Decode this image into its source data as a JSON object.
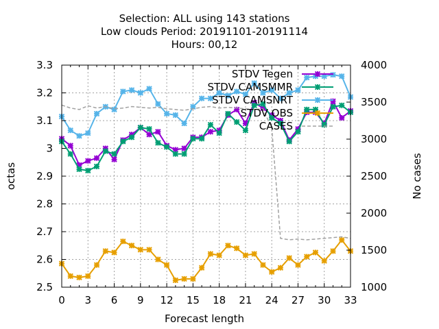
{
  "chart_data": {
    "type": "line",
    "title_lines": [
      "Selection: ALL using   143 stations",
      "Low clouds   Period: 20191101-20191114",
      "Hours:  00,12"
    ],
    "xlabel": "Forecast length",
    "ylabel": "octas",
    "y2label": "No cases",
    "xlim": [
      0,
      33
    ],
    "ylim": [
      2.5,
      3.3
    ],
    "y2lim": [
      1000,
      4000
    ],
    "xticks": [
      0,
      3,
      6,
      9,
      12,
      15,
      18,
      21,
      24,
      27,
      30,
      33
    ],
    "yticks": [
      2.5,
      2.6,
      2.7,
      2.8,
      2.9,
      3.0,
      3.1,
      3.2,
      3.3
    ],
    "ytick_labels": [
      "2.5",
      "2.6",
      "2.7",
      "2.8",
      "2.9",
      "3",
      "3.1",
      "3.2",
      "3.3"
    ],
    "y2ticks": [
      1000,
      1500,
      2000,
      2500,
      3000,
      3500,
      4000
    ],
    "grid": true,
    "legend_position": "top-right",
    "x": [
      0,
      1,
      2,
      3,
      4,
      5,
      6,
      7,
      8,
      9,
      10,
      11,
      12,
      13,
      14,
      15,
      16,
      17,
      18,
      19,
      20,
      21,
      22,
      23,
      24,
      25,
      26,
      27,
      28,
      29,
      30,
      31,
      32,
      33
    ],
    "series": [
      {
        "name": "STDV Tegen",
        "color": "#9400d3",
        "marker": "x",
        "axis": "left",
        "values": [
          3.035,
          3.01,
          2.94,
          2.955,
          2.965,
          3.0,
          2.96,
          3.03,
          3.05,
          3.075,
          3.05,
          3.06,
          3.01,
          2.995,
          3.0,
          3.04,
          3.04,
          3.06,
          3.065,
          3.12,
          3.14,
          3.09,
          3.165,
          3.145,
          3.12,
          3.1,
          3.03,
          3.07,
          3.13,
          3.13,
          3.09,
          3.17,
          3.11,
          3.135
        ]
      },
      {
        "name": "STDV CAMSMMR",
        "color": "#009e73",
        "marker": "x",
        "axis": "left",
        "values": [
          3.025,
          2.98,
          2.925,
          2.92,
          2.935,
          2.99,
          2.98,
          3.025,
          3.04,
          3.075,
          3.07,
          3.02,
          3.005,
          2.98,
          2.98,
          3.035,
          3.035,
          3.085,
          3.055,
          3.125,
          3.095,
          3.065,
          3.155,
          3.16,
          3.11,
          3.09,
          3.025,
          3.06,
          3.14,
          3.14,
          3.085,
          3.15,
          3.155,
          3.13
        ]
      },
      {
        "name": "STDV CAMSNRT",
        "color": "#56b4e9",
        "marker": "x",
        "axis": "left",
        "values": [
          3.115,
          3.065,
          3.045,
          3.055,
          3.125,
          3.15,
          3.14,
          3.205,
          3.21,
          3.2,
          3.215,
          3.16,
          3.125,
          3.12,
          3.09,
          3.15,
          3.18,
          3.18,
          3.2,
          3.19,
          3.205,
          3.195,
          3.235,
          3.2,
          3.21,
          3.18,
          3.2,
          3.21,
          3.255,
          3.26,
          3.26,
          3.265,
          3.26,
          3.185
        ]
      },
      {
        "name": "STDV OBS",
        "color": "#e69f00",
        "marker": "x",
        "axis": "left",
        "values": [
          2.585,
          2.54,
          2.535,
          2.54,
          2.58,
          2.63,
          2.625,
          2.665,
          2.65,
          2.635,
          2.635,
          2.6,
          2.58,
          2.525,
          2.53,
          2.53,
          2.57,
          2.62,
          2.615,
          2.65,
          2.64,
          2.615,
          2.62,
          2.58,
          2.555,
          2.57,
          2.605,
          2.58,
          2.61,
          2.625,
          2.595,
          2.63,
          2.67,
          2.63
        ]
      },
      {
        "name": "CASES",
        "color": "#a0a0a0",
        "dashed": true,
        "axis": "right",
        "values": [
          3460,
          3420,
          3400,
          3450,
          3420,
          3440,
          3410,
          3420,
          3440,
          3430,
          3420,
          3430,
          3410,
          3400,
          3390,
          3410,
          3430,
          3440,
          3420,
          3430,
          3420,
          3410,
          3400,
          3410,
          3150,
          1660,
          1640,
          1650,
          1640,
          1650,
          1660,
          1670,
          1680,
          1660
        ]
      }
    ]
  }
}
